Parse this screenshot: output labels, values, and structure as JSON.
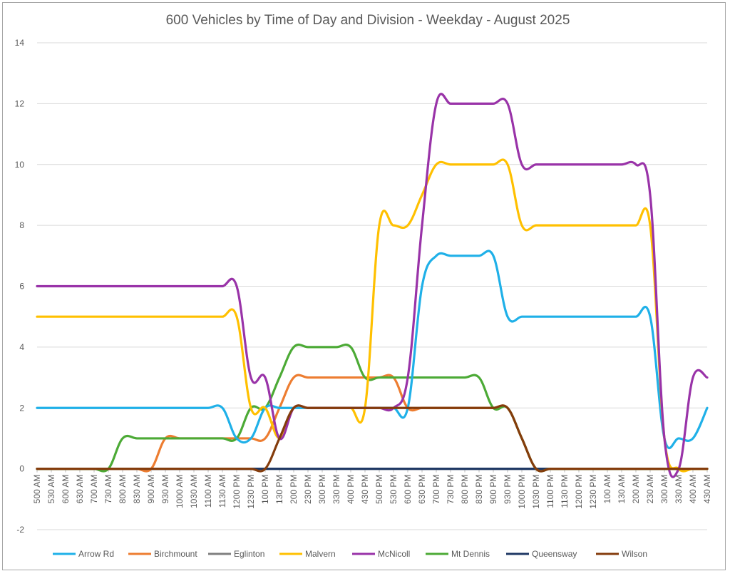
{
  "chart_data": {
    "type": "line",
    "title": "600 Vehicles by Time of Day and Division - Weekday - August 2025",
    "xlabel": "",
    "ylabel": "",
    "ylim": [
      -2,
      14
    ],
    "yticks": [
      -2,
      0,
      2,
      4,
      6,
      8,
      10,
      12,
      14
    ],
    "grid": true,
    "legend_position": "bottom",
    "categories": [
      "500 AM",
      "530 AM",
      "600 AM",
      "630 AM",
      "700 AM",
      "730 AM",
      "800 AM",
      "830 AM",
      "900 AM",
      "930 AM",
      "1000 AM",
      "1030 AM",
      "1100 AM",
      "1130 AM",
      "1200 PM",
      "1230 PM",
      "100 PM",
      "130 PM",
      "200 PM",
      "230 PM",
      "300 PM",
      "330 PM",
      "400 PM",
      "430 PM",
      "500 PM",
      "530 PM",
      "600 PM",
      "630 PM",
      "700 PM",
      "730 PM",
      "800 PM",
      "830 PM",
      "900 PM",
      "930 PM",
      "1000 PM",
      "1030 PM",
      "1100 PM",
      "1130 PM",
      "1200 PM",
      "1230 PM",
      "100 AM",
      "130 AM",
      "200 AM",
      "230 AM",
      "300 AM",
      "330 AM",
      "400 AM",
      "430 AM"
    ],
    "series": [
      {
        "name": "Arrow Rd",
        "color": "#1fb0e8",
        "values": [
          2,
          2,
          2,
          2,
          2,
          2,
          2,
          2,
          2,
          2,
          2,
          2,
          2,
          2,
          1,
          1,
          2,
          2,
          2,
          2,
          2,
          2,
          2,
          2,
          2,
          2,
          2,
          6,
          7,
          7,
          7,
          7,
          7,
          5,
          5,
          5,
          5,
          5,
          5,
          5,
          5,
          5,
          5,
          5,
          1,
          1,
          1,
          2
        ]
      },
      {
        "name": "Birchmount",
        "color": "#ed7d31",
        "values": [
          0,
          0,
          0,
          0,
          0,
          0,
          0,
          0,
          0,
          1,
          1,
          1,
          1,
          1,
          1,
          1,
          1,
          2,
          3,
          3,
          3,
          3,
          3,
          3,
          3,
          3,
          2,
          2,
          2,
          2,
          2,
          2,
          2,
          2,
          1,
          0,
          0,
          0,
          0,
          0,
          0,
          0,
          0,
          0,
          0,
          0,
          0,
          0
        ]
      },
      {
        "name": "Eglinton",
        "color": "#7f7f7f",
        "values": [
          0,
          0,
          0,
          0,
          0,
          0,
          0,
          0,
          0,
          0,
          0,
          0,
          0,
          0,
          0,
          0,
          0,
          0,
          0,
          0,
          0,
          0,
          0,
          0,
          0,
          0,
          0,
          0,
          0,
          0,
          0,
          0,
          0,
          0,
          0,
          0,
          0,
          0,
          0,
          0,
          0,
          0,
          0,
          0,
          0,
          0,
          0,
          0
        ]
      },
      {
        "name": "Malvern",
        "color": "#ffc000",
        "values": [
          5,
          5,
          5,
          5,
          5,
          5,
          5,
          5,
          5,
          5,
          5,
          5,
          5,
          5,
          5,
          2,
          2,
          1,
          2,
          2,
          2,
          2,
          2,
          2,
          8,
          8,
          8,
          9,
          10,
          10,
          10,
          10,
          10,
          10,
          8,
          8,
          8,
          8,
          8,
          8,
          8,
          8,
          8,
          8,
          1,
          0,
          0,
          0
        ]
      },
      {
        "name": "McNicoll",
        "color": "#9933a8",
        "values": [
          6,
          6,
          6,
          6,
          6,
          6,
          6,
          6,
          6,
          6,
          6,
          6,
          6,
          6,
          6,
          3,
          3,
          1,
          2,
          2,
          2,
          2,
          2,
          2,
          2,
          2,
          3,
          8,
          12,
          12,
          12,
          12,
          12,
          12,
          10,
          10,
          10,
          10,
          10,
          10,
          10,
          10,
          10,
          9,
          1,
          0,
          3,
          3
        ]
      },
      {
        "name": "Mt Dennis",
        "color": "#4caa36",
        "values": [
          0,
          0,
          0,
          0,
          0,
          0,
          1,
          1,
          1,
          1,
          1,
          1,
          1,
          1,
          1,
          2,
          2,
          3,
          4,
          4,
          4,
          4,
          4,
          3,
          3,
          3,
          3,
          3,
          3,
          3,
          3,
          3,
          2,
          2,
          1,
          0,
          0,
          0,
          0,
          0,
          0,
          0,
          0,
          0,
          0,
          0,
          0,
          0
        ]
      },
      {
        "name": "Queensway",
        "color": "#1f3864",
        "values": [
          0,
          0,
          0,
          0,
          0,
          0,
          0,
          0,
          0,
          0,
          0,
          0,
          0,
          0,
          0,
          0,
          0,
          0,
          0,
          0,
          0,
          0,
          0,
          0,
          0,
          0,
          0,
          0,
          0,
          0,
          0,
          0,
          0,
          0,
          0,
          0,
          0,
          0,
          0,
          0,
          0,
          0,
          0,
          0,
          0,
          0,
          0,
          0
        ]
      },
      {
        "name": "Wilson",
        "color": "#843c0c",
        "values": [
          0,
          0,
          0,
          0,
          0,
          0,
          0,
          0,
          0,
          0,
          0,
          0,
          0,
          0,
          0,
          0,
          0,
          1,
          2,
          2,
          2,
          2,
          2,
          2,
          2,
          2,
          2,
          2,
          2,
          2,
          2,
          2,
          2,
          2,
          1,
          0,
          0,
          0,
          0,
          0,
          0,
          0,
          0,
          0,
          0,
          0,
          0,
          0
        ]
      }
    ]
  }
}
